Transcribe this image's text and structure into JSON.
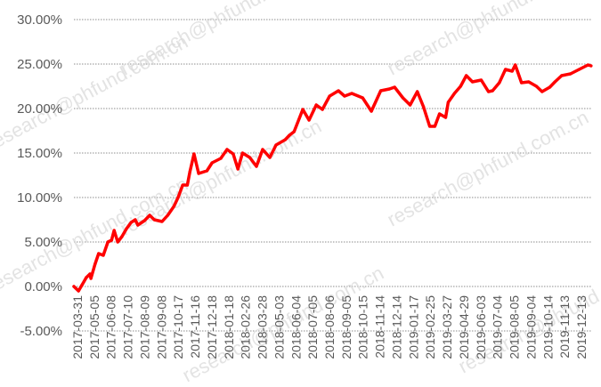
{
  "watermark": "research@phfund.com.cn",
  "chart_data": {
    "type": "line",
    "title": "",
    "xlabel": "",
    "ylabel": "",
    "ylim": [
      -5,
      30
    ],
    "y_unit": "%",
    "grid": "horizontal dotted",
    "legend": "none",
    "y_tick_labels": [
      "30.00%",
      "25.00%",
      "20.00%",
      "15.00%",
      "10.00%",
      "5.00%",
      "0.00%",
      "-5.00%"
    ],
    "y_ticks": [
      30,
      25,
      20,
      15,
      10,
      5,
      0,
      -5
    ],
    "x_range": [
      "2017-03-31",
      "2019-12-31"
    ],
    "x_tick_labels": [
      "2017-03-31",
      "2017-05-05",
      "2017-06-08",
      "2017-07-10",
      "2017-08-09",
      "2017-09-08",
      "2017-10-17",
      "2017-11-16",
      "2017-12-18",
      "2018-01-18",
      "2018-02-26",
      "2018-03-28",
      "2018-05-03",
      "2018-06-04",
      "2018-07-05",
      "2018-08-06",
      "2018-09-05",
      "2018-10-15",
      "2018-11-14",
      "2018-12-14",
      "2019-01-17",
      "2019-02-25",
      "2019-03-27",
      "2019-04-29",
      "2019-06-03",
      "2019-07-04",
      "2019-08-05",
      "2019-09-04",
      "2019-10-14",
      "2019-11-13",
      "2019-12-13"
    ],
    "series": [
      {
        "color": "#ff0000",
        "x": [
          "2017-03-31",
          "2017-04-09",
          "2017-04-16",
          "2017-04-24",
          "2017-05-01",
          "2017-05-03",
          "2017-05-11",
          "2017-05-18",
          "2017-05-27",
          "2017-06-05",
          "2017-06-12",
          "2017-06-17",
          "2017-06-24",
          "2017-07-02",
          "2017-07-11",
          "2017-07-20",
          "2017-07-28",
          "2017-08-02",
          "2017-08-15",
          "2017-08-25",
          "2017-09-03",
          "2017-09-18",
          "2017-09-29",
          "2017-10-11",
          "2017-10-19",
          "2017-10-28",
          "2017-11-06",
          "2017-11-11",
          "2017-11-19",
          "2017-11-28",
          "2017-12-14",
          "2017-12-24",
          "2018-01-10",
          "2018-01-22",
          "2018-02-03",
          "2018-02-12",
          "2018-02-21",
          "2018-03-07",
          "2018-03-20",
          "2018-04-01",
          "2018-04-15",
          "2018-04-27",
          "2018-05-15",
          "2018-05-23",
          "2018-06-01",
          "2018-06-18",
          "2018-06-30",
          "2018-07-14",
          "2018-07-26",
          "2018-08-09",
          "2018-08-26",
          "2018-09-07",
          "2018-09-21",
          "2018-10-12",
          "2018-10-29",
          "2018-11-16",
          "2018-12-03",
          "2018-12-13",
          "2018-12-29",
          "2019-01-12",
          "2019-01-26",
          "2019-02-07",
          "2019-02-19",
          "2019-03-01",
          "2019-03-10",
          "2019-03-22",
          "2019-03-27",
          "2019-04-08",
          "2019-04-20",
          "2019-05-01",
          "2019-05-13",
          "2019-05-30",
          "2019-06-13",
          "2019-06-21",
          "2019-07-04",
          "2019-07-16",
          "2019-07-29",
          "2019-08-04",
          "2019-08-16",
          "2019-08-30",
          "2019-09-14",
          "2019-09-25",
          "2019-10-10",
          "2019-10-20",
          "2019-11-02",
          "2019-11-19",
          "2019-12-06",
          "2019-12-23",
          "2019-12-29"
        ],
        "y": [
          0.0,
          -0.5,
          0.2,
          1.0,
          1.4,
          0.9,
          2.5,
          3.7,
          3.5,
          5.0,
          5.2,
          6.3,
          5.0,
          5.6,
          6.5,
          7.2,
          7.5,
          6.9,
          7.4,
          8.0,
          7.5,
          7.3,
          8.0,
          9.0,
          10.0,
          11.4,
          11.4,
          12.9,
          14.9,
          12.7,
          13.0,
          13.9,
          14.4,
          15.4,
          14.9,
          13.2,
          15.0,
          14.5,
          13.5,
          15.4,
          14.5,
          15.9,
          16.5,
          17.0,
          17.4,
          19.9,
          18.7,
          20.4,
          19.9,
          21.4,
          22.0,
          21.4,
          21.7,
          21.2,
          19.7,
          22.0,
          22.2,
          22.4,
          21.2,
          20.4,
          21.9,
          20.2,
          18.0,
          18.0,
          19.4,
          19.0,
          20.7,
          21.7,
          22.5,
          23.7,
          23.0,
          23.2,
          21.9,
          22.0,
          22.9,
          24.4,
          24.2,
          24.9,
          22.9,
          23.0,
          22.5,
          21.9,
          22.4,
          23.0,
          23.7,
          23.9,
          24.4,
          24.9,
          24.8
        ]
      }
    ]
  }
}
